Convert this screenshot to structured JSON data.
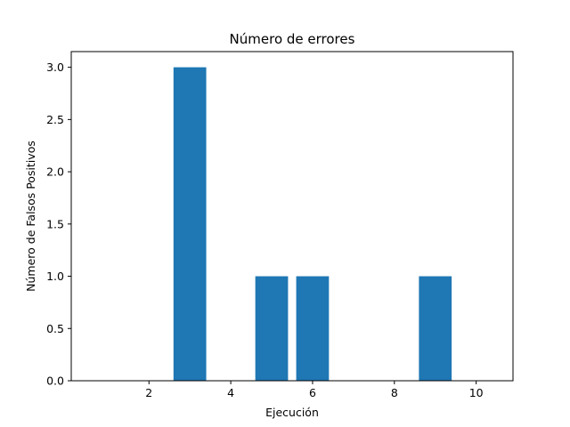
{
  "chart_data": {
    "type": "bar",
    "title": "Número de errores",
    "xlabel": "Ejecución",
    "ylabel": "Número de Falsos Positivos",
    "x": [
      1,
      2,
      3,
      4,
      5,
      6,
      7,
      8,
      9,
      10
    ],
    "values": [
      0,
      0,
      3,
      0,
      1,
      1,
      0,
      0,
      1,
      0
    ],
    "xlim": [
      0.1,
      10.9
    ],
    "ylim": [
      0,
      3.15
    ],
    "xticks": [
      2,
      4,
      6,
      8,
      10
    ],
    "xtick_labels": [
      "2",
      "4",
      "6",
      "8",
      "10"
    ],
    "yticks": [
      0,
      0.5,
      1,
      1.5,
      2,
      2.5,
      3
    ],
    "ytick_labels": [
      "0.0",
      "0.5",
      "1.0",
      "1.5",
      "2.0",
      "2.5",
      "3.0"
    ],
    "bar_color": "#1f77b4",
    "grid": false,
    "legend": "none"
  }
}
